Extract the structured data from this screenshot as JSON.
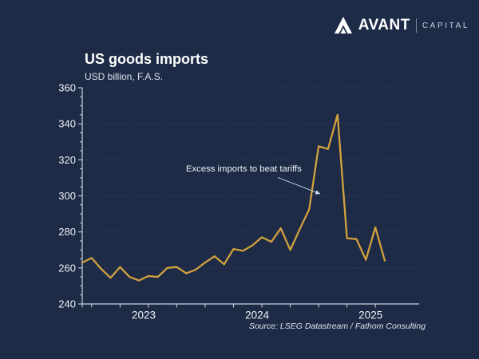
{
  "brand": {
    "name": "AVANT",
    "suffix": "CAPITAL"
  },
  "header": {
    "title": "US goods imports",
    "subtitle": "USD billion, F.A.S."
  },
  "annotation": {
    "text": "Excess imports to beat tariffs"
  },
  "source_note": "Source: LSEG Datastream / Fathom Consulting",
  "colors": {
    "background": "#1e2b47",
    "line": "#d2a13e",
    "axis": "#c9d1de",
    "grid": "#3c4d70",
    "tick_text": "#eef1f6"
  },
  "chart_data": {
    "type": "line",
    "title": "US goods imports",
    "ylabel": "USD billion, F.A.S.",
    "x": [
      "2022-12",
      "2023-01",
      "2023-02",
      "2023-03",
      "2023-04",
      "2023-05",
      "2023-06",
      "2023-07",
      "2023-08",
      "2023-09",
      "2023-10",
      "2023-11",
      "2023-12",
      "2024-01",
      "2024-02",
      "2024-03",
      "2024-04",
      "2024-05",
      "2024-06",
      "2024-07",
      "2024-08",
      "2024-09",
      "2024-10",
      "2024-11",
      "2024-12",
      "2025-01",
      "2025-02",
      "2025-03",
      "2025-04",
      "2025-05",
      "2025-06",
      "2025-07",
      "2025-08"
    ],
    "series": [
      {
        "name": "US goods imports (USD billion, F.A.S.)",
        "values": [
          263,
          265.5,
          259.5,
          254.5,
          260.5,
          255,
          253,
          255.5,
          255,
          260,
          260.5,
          257,
          259,
          263,
          266.5,
          262,
          270.5,
          269.5,
          272.5,
          277,
          274.5,
          282,
          270,
          281.5,
          292.5,
          327.5,
          326,
          345,
          276.5,
          276,
          264.5,
          282.5,
          264
        ]
      }
    ],
    "ylim": [
      240,
      360
    ],
    "yticks": [
      240,
      260,
      280,
      300,
      320,
      340,
      360
    ],
    "xtick_labels": [
      "2023",
      "2024",
      "2025"
    ],
    "grid": "horizontal-dotted",
    "legend_position": "none",
    "annotations": [
      {
        "text": "Excess imports to beat tariffs"
      }
    ]
  }
}
